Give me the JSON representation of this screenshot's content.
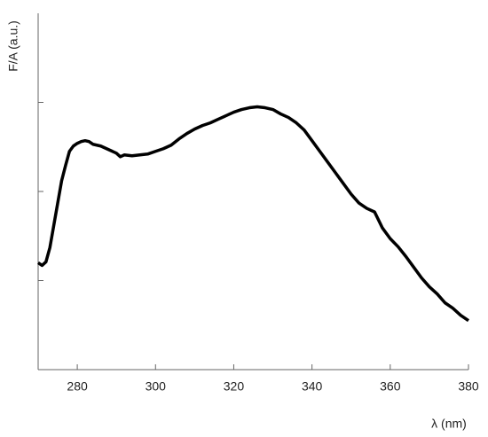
{
  "chart_data": {
    "type": "line",
    "xlabel": "λ (nm)",
    "ylabel": "F/A (a.u.)",
    "xlim": [
      270,
      380
    ],
    "xticks": [
      280,
      300,
      320,
      340,
      360,
      380
    ],
    "ylim": [
      0,
      4
    ],
    "yticks": [
      1,
      2,
      3
    ],
    "series": [
      {
        "color": "#000000",
        "x": [
          270,
          271,
          272,
          273,
          274,
          275,
          276,
          277,
          278,
          279,
          280,
          281,
          282,
          283,
          284,
          286,
          288,
          290,
          291,
          292,
          294,
          296,
          298,
          300,
          302,
          304,
          306,
          308,
          310,
          312,
          314,
          316,
          318,
          320,
          322,
          324,
          326,
          328,
          330,
          332,
          334,
          336,
          338,
          340,
          342,
          344,
          346,
          348,
          350,
          352,
          354,
          356,
          358,
          360,
          362,
          364,
          366,
          368,
          370,
          372,
          374,
          376,
          378,
          380
        ],
        "values": [
          1.2,
          1.17,
          1.21,
          1.37,
          1.62,
          1.87,
          2.12,
          2.29,
          2.45,
          2.51,
          2.54,
          2.56,
          2.57,
          2.56,
          2.53,
          2.51,
          2.47,
          2.43,
          2.39,
          2.41,
          2.4,
          2.41,
          2.42,
          2.45,
          2.48,
          2.52,
          2.59,
          2.65,
          2.7,
          2.74,
          2.77,
          2.81,
          2.85,
          2.89,
          2.92,
          2.94,
          2.95,
          2.94,
          2.92,
          2.87,
          2.83,
          2.77,
          2.69,
          2.57,
          2.45,
          2.33,
          2.21,
          2.09,
          1.97,
          1.87,
          1.81,
          1.77,
          1.59,
          1.47,
          1.38,
          1.27,
          1.15,
          1.03,
          0.93,
          0.85,
          0.75,
          0.69,
          0.61,
          0.55
        ]
      }
    ]
  }
}
